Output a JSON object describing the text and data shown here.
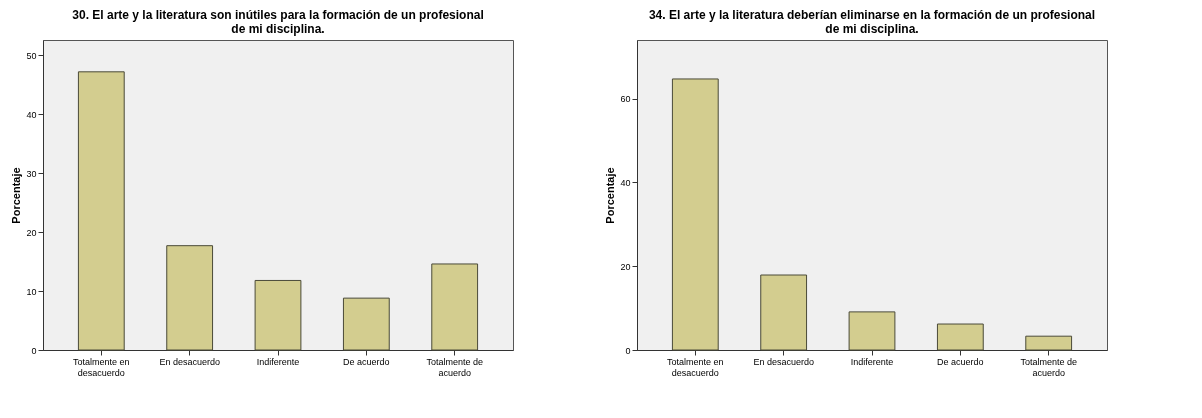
{
  "chart_data": [
    {
      "type": "bar",
      "title": "30. El arte y la literatura son inútiles para la formación de un profesional de mi disciplina.",
      "ylabel": "Porcentaje",
      "categories": [
        "Totalmente en desacuerdo",
        "En desacuerdo",
        "Indiferente",
        "De acuerdo",
        "Totalmente de acuerdo"
      ],
      "values": [
        47.2,
        17.7,
        11.8,
        8.8,
        14.6
      ],
      "color": "#d3cd8f",
      "ylim": [
        0,
        52.6
      ],
      "yticks": [
        0,
        10,
        20,
        30,
        40,
        50
      ],
      "grid": false
    },
    {
      "type": "bar",
      "title": "34. El arte y la literatura deberían eliminarse en la formación de un profesional de mi disciplina.",
      "ylabel": "Porcentaje",
      "categories": [
        "Totalmente en desacuerdo",
        "En desacuerdo",
        "Indiferente",
        "De acuerdo",
        "Totalmente de acuerdo"
      ],
      "values": [
        64.7,
        17.9,
        9.1,
        6.2,
        3.3
      ],
      "color": "#d3cd8f",
      "ylim": [
        0,
        74
      ],
      "yticks": [
        0,
        20,
        40,
        60
      ],
      "grid": false
    }
  ]
}
